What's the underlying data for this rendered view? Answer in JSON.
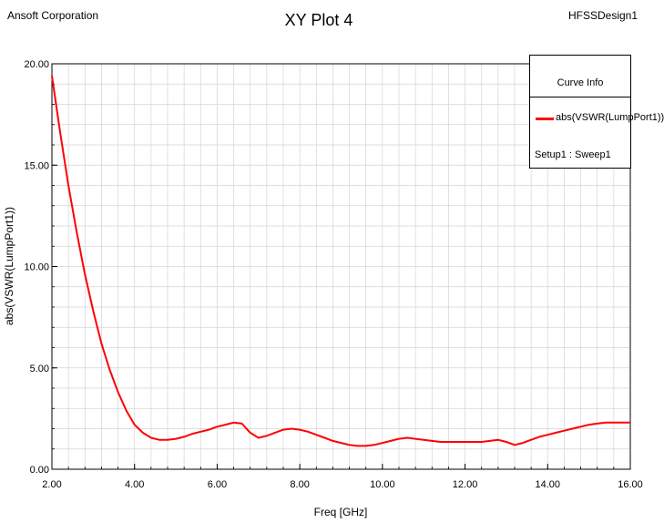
{
  "header": {
    "left": "Ansoft Corporation",
    "right": "HFSSDesign1"
  },
  "chart_data": {
    "type": "line",
    "title": "XY Plot 4",
    "xlabel": "Freq [GHz]",
    "ylabel": "abs(VSWR(LumpPort1))",
    "xlim": [
      2.0,
      16.0
    ],
    "ylim": [
      0.0,
      20.0
    ],
    "xticks": [
      "2.00",
      "4.00",
      "6.00",
      "8.00",
      "10.00",
      "12.00",
      "14.00",
      "16.00"
    ],
    "yticks": [
      "0.00",
      "5.00",
      "10.00",
      "15.00",
      "20.00"
    ],
    "grid": true,
    "legend": {
      "title": "Curve Info",
      "placement": "top-right",
      "setup": "Setup1 : Sweep1"
    },
    "series": [
      {
        "name": "abs(VSWR(LumpPort1))",
        "color": "#ff0000",
        "x": [
          2.0,
          2.2,
          2.4,
          2.6,
          2.8,
          3.0,
          3.2,
          3.4,
          3.6,
          3.8,
          4.0,
          4.2,
          4.4,
          4.6,
          4.8,
          5.0,
          5.2,
          5.4,
          5.6,
          5.8,
          6.0,
          6.2,
          6.4,
          6.6,
          6.8,
          7.0,
          7.2,
          7.4,
          7.6,
          7.8,
          8.0,
          8.2,
          8.4,
          8.6,
          8.8,
          9.0,
          9.2,
          9.4,
          9.6,
          9.8,
          10.0,
          10.2,
          10.4,
          10.6,
          10.8,
          11.0,
          11.2,
          11.4,
          11.6,
          11.8,
          12.0,
          12.2,
          12.4,
          12.6,
          12.8,
          13.0,
          13.2,
          13.4,
          13.6,
          13.8,
          14.0,
          14.2,
          14.4,
          14.6,
          14.8,
          15.0,
          15.2,
          15.4,
          15.6,
          15.8,
          16.0
        ],
        "y": [
          19.4,
          16.6,
          14.0,
          11.7,
          9.6,
          7.8,
          6.2,
          4.9,
          3.8,
          2.9,
          2.2,
          1.8,
          1.55,
          1.45,
          1.45,
          1.5,
          1.6,
          1.75,
          1.85,
          1.95,
          2.1,
          2.2,
          2.3,
          2.25,
          1.8,
          1.55,
          1.65,
          1.8,
          1.95,
          2.0,
          1.95,
          1.85,
          1.7,
          1.55,
          1.4,
          1.3,
          1.2,
          1.15,
          1.15,
          1.2,
          1.3,
          1.4,
          1.5,
          1.55,
          1.5,
          1.45,
          1.4,
          1.35,
          1.35,
          1.35,
          1.35,
          1.35,
          1.35,
          1.4,
          1.45,
          1.35,
          1.2,
          1.3,
          1.45,
          1.6,
          1.7,
          1.8,
          1.9,
          2.0,
          2.1,
          2.2,
          2.25,
          2.3,
          2.3,
          2.3,
          2.3
        ]
      }
    ]
  }
}
